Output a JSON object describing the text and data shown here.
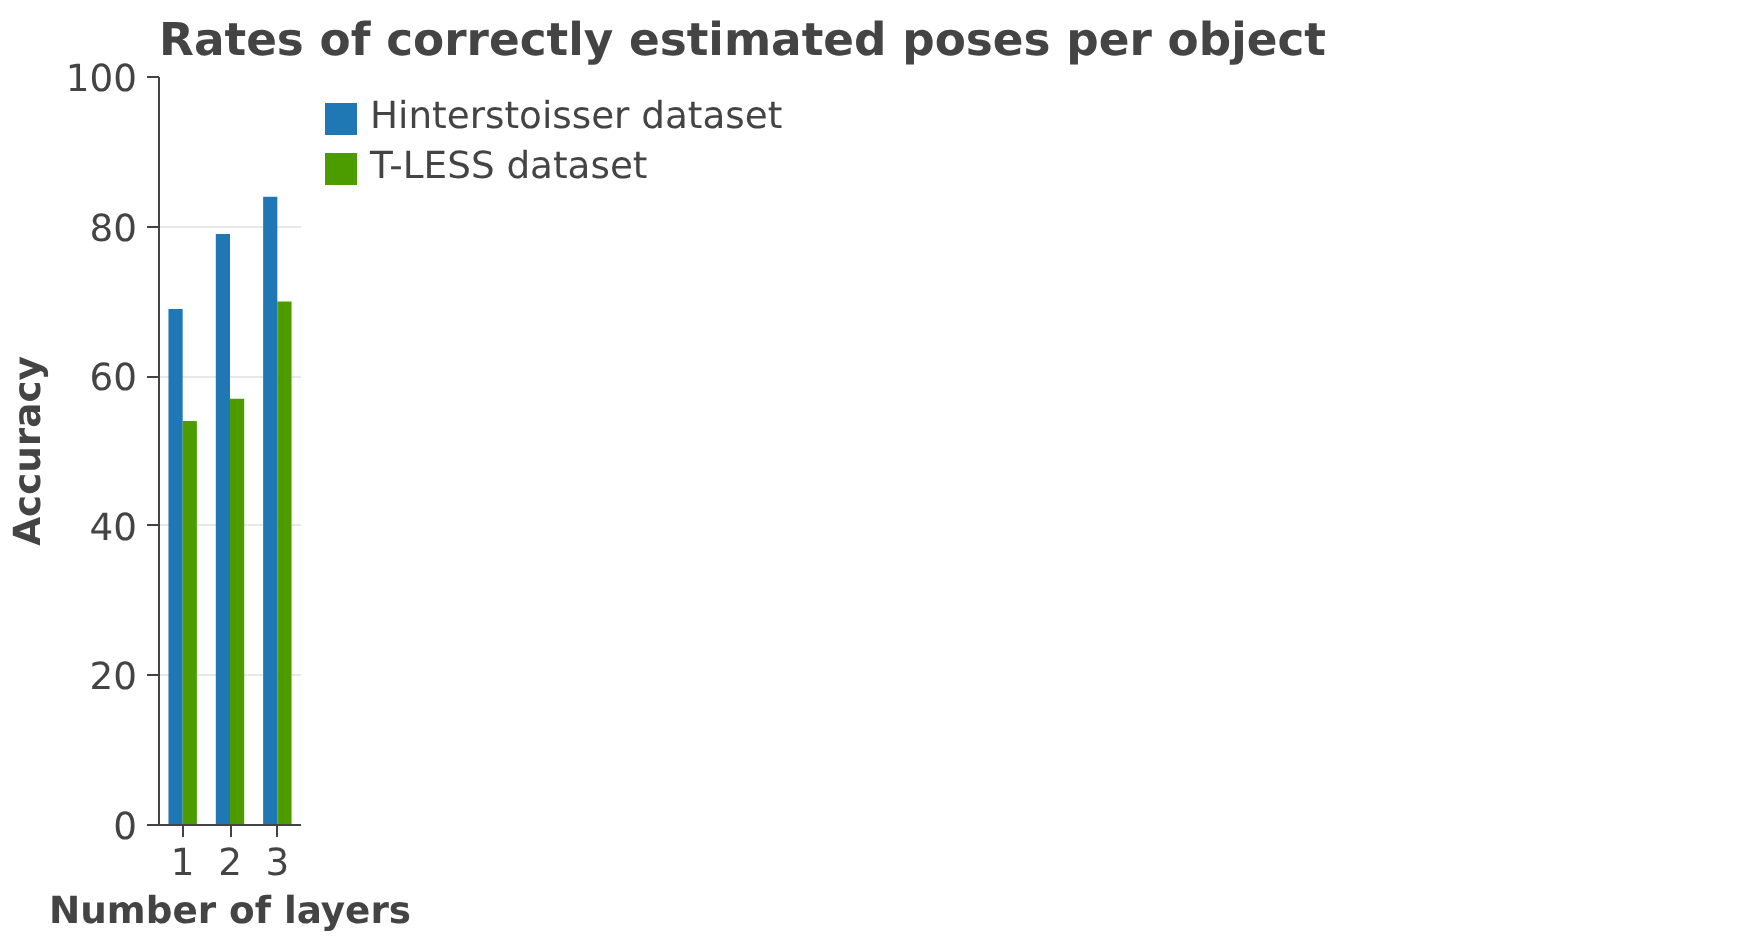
{
  "chart_data": {
    "type": "bar",
    "title": "Rates of correctly estimated poses per object",
    "xlabel": "Number of layers",
    "ylabel": "Accuracy",
    "categories": [
      "1",
      "2",
      "3"
    ],
    "series": [
      {
        "name": "Hinterstoisser dataset",
        "color": "#1f77b4",
        "values": [
          69,
          79,
          84
        ]
      },
      {
        "name": "T-LESS dataset",
        "color": "#4c9c00",
        "values": [
          54,
          57,
          70
        ]
      }
    ],
    "ylim": [
      0,
      100
    ],
    "yticks": [
      0,
      20,
      40,
      60,
      80,
      100
    ],
    "grid": "y",
    "legend": "top right"
  }
}
